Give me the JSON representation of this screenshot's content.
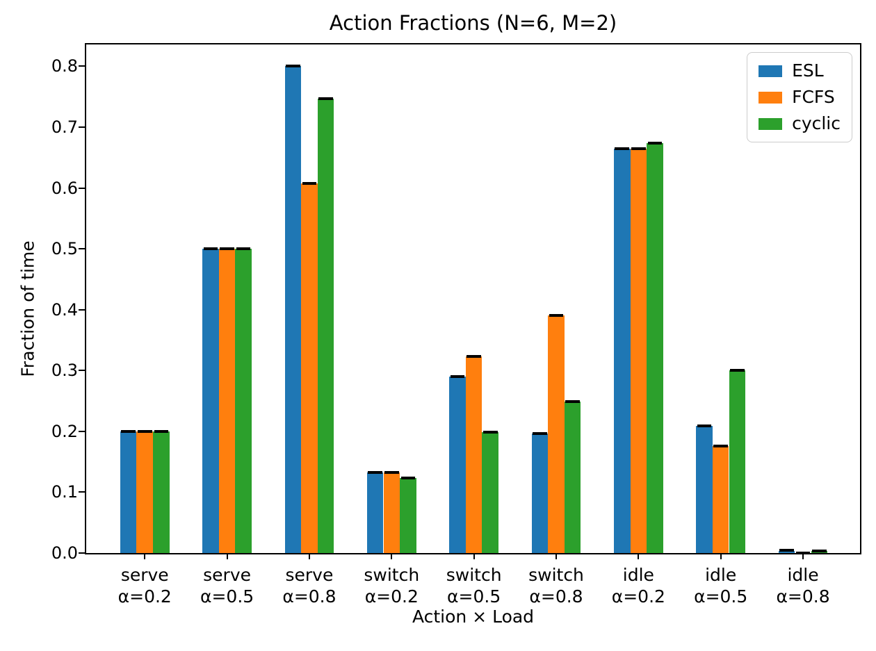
{
  "figure": {
    "kind": "matplotlib-style bar chart"
  },
  "chart_data": {
    "type": "bar",
    "title": "Action Fractions (N=6, M=2)",
    "xlabel": "Action × Load",
    "ylabel": "Fraction of time",
    "categories": [
      {
        "action": "serve",
        "load": "α=0.2"
      },
      {
        "action": "serve",
        "load": "α=0.5"
      },
      {
        "action": "serve",
        "load": "α=0.8"
      },
      {
        "action": "switch",
        "load": "α=0.2"
      },
      {
        "action": "switch",
        "load": "α=0.5"
      },
      {
        "action": "switch",
        "load": "α=0.8"
      },
      {
        "action": "idle",
        "load": "α=0.2"
      },
      {
        "action": "idle",
        "load": "α=0.5"
      },
      {
        "action": "idle",
        "load": "α=0.8"
      }
    ],
    "series": [
      {
        "name": "ESL",
        "color": "#1f77b4",
        "values": [
          0.2,
          0.5,
          0.8,
          0.132,
          0.29,
          0.196,
          0.665,
          0.209,
          0.004
        ]
      },
      {
        "name": "FCFS",
        "color": "#ff7f0e",
        "values": [
          0.2,
          0.5,
          0.608,
          0.132,
          0.323,
          0.39,
          0.665,
          0.176,
          0.0
        ]
      },
      {
        "name": "cyclic",
        "color": "#2ca02c",
        "values": [
          0.2,
          0.5,
          0.747,
          0.123,
          0.199,
          0.249,
          0.674,
          0.3,
          0.003
        ]
      }
    ],
    "error_bars": {
      "style": "caps",
      "color": "#000000"
    },
    "ylim": [
      0.0,
      0.84
    ],
    "yticks": [
      {
        "value": 0.0,
        "label": "0.0"
      },
      {
        "value": 0.1,
        "label": "0.1"
      },
      {
        "value": 0.2,
        "label": "0.2"
      },
      {
        "value": 0.3,
        "label": "0.3"
      },
      {
        "value": 0.4,
        "label": "0.4"
      },
      {
        "value": 0.5,
        "label": "0.5"
      },
      {
        "value": 0.6,
        "label": "0.6"
      },
      {
        "value": 0.7,
        "label": "0.7"
      },
      {
        "value": 0.8,
        "label": "0.8"
      }
    ],
    "grid": false,
    "legend_position": "upper right"
  }
}
